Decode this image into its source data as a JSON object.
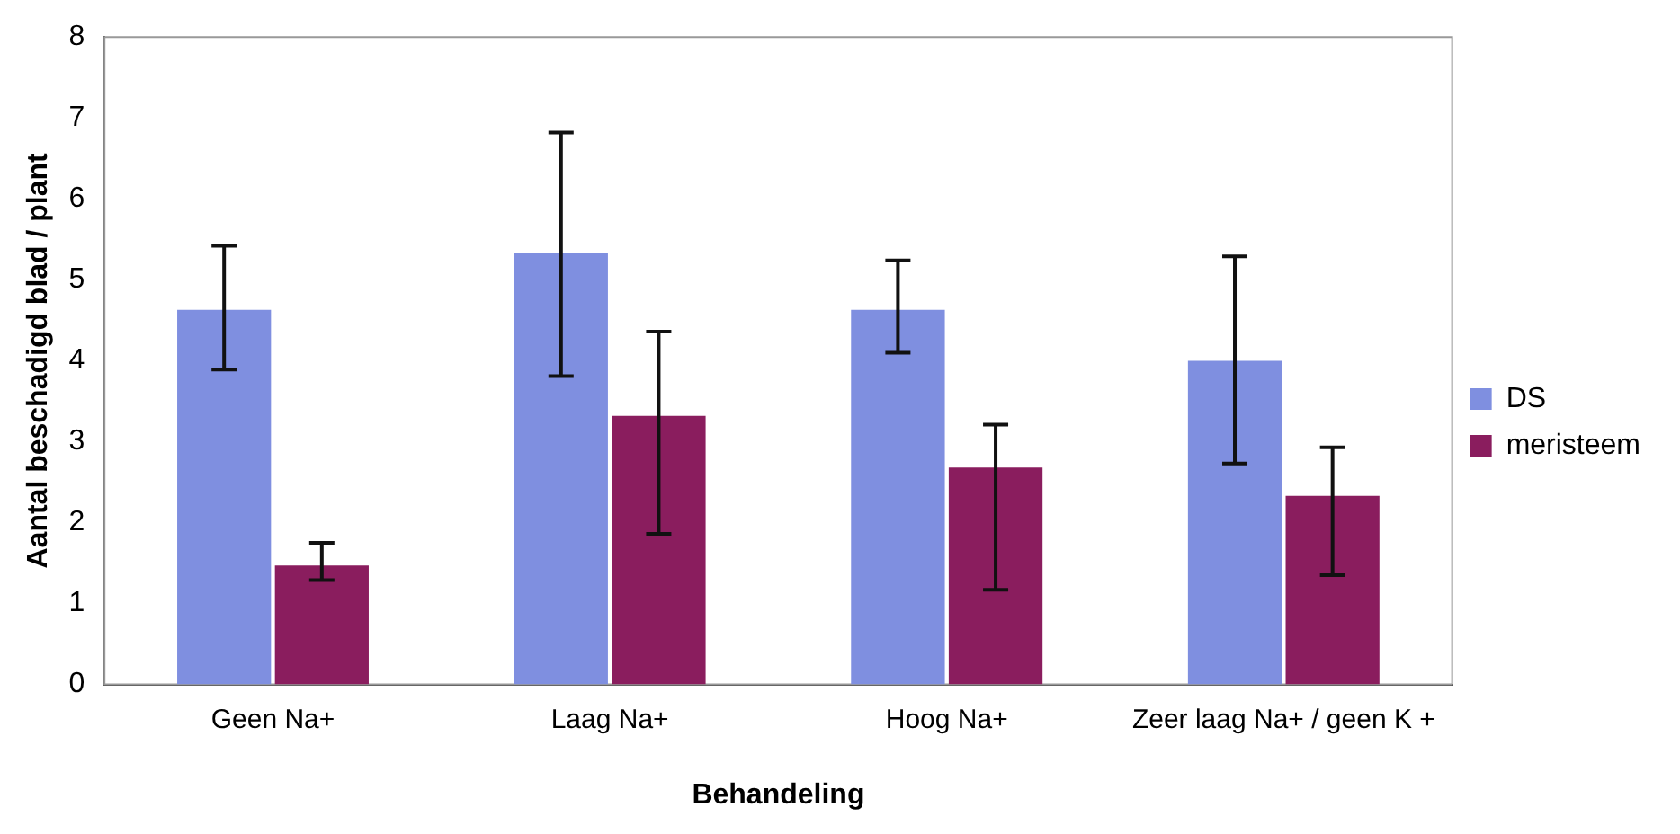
{
  "chart_data": {
    "type": "bar",
    "xlabel": "Behandeling",
    "ylabel": "Aantal beschadigd blad / plant",
    "categories": [
      "Geen Na+",
      "Laag Na+",
      "Hoog Na+",
      "Zeer laag Na+ / geen K +"
    ],
    "series": [
      {
        "name": "DS",
        "color": "#7f8fe0",
        "values": [
          4.63,
          5.33,
          4.63,
          4.0
        ],
        "errors": [
          [
            3.89,
            5.42
          ],
          [
            3.81,
            6.82
          ],
          [
            4.1,
            5.24
          ],
          [
            2.73,
            5.29
          ]
        ]
      },
      {
        "name": "meristeem",
        "color": "#8a1d5e",
        "values": [
          1.47,
          3.32,
          2.68,
          2.33
        ],
        "errors": [
          [
            1.29,
            1.75
          ],
          [
            1.86,
            4.36
          ],
          [
            1.17,
            3.21
          ],
          [
            1.35,
            2.93
          ]
        ]
      }
    ],
    "ylim": [
      0,
      8
    ],
    "yticks": [
      0,
      1,
      2,
      3,
      4,
      5,
      6,
      7,
      8
    ],
    "grid": false,
    "legend": "right"
  }
}
